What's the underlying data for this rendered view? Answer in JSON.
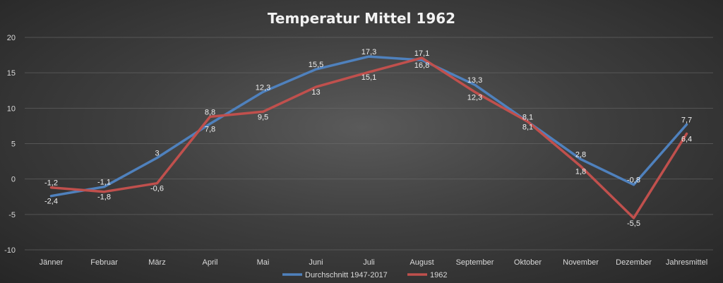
{
  "chart_data": {
    "type": "line",
    "title": "Temperatur Mittel 1962",
    "categories": [
      "Jänner",
      "Februar",
      "März",
      "April",
      "Mai",
      "Juni",
      "Juli",
      "August",
      "September",
      "Oktober",
      "November",
      "Dezember",
      "Jahresmittel"
    ],
    "ylim": [
      -10,
      20
    ],
    "yticks": [
      -10,
      -5,
      0,
      5,
      10,
      15,
      20
    ],
    "grid": true,
    "legend": "bottom",
    "series": [
      {
        "name": "Durchschnitt 1947-2017",
        "color": "#4f81bd",
        "values": [
          -2.4,
          -1.1,
          3,
          7.8,
          12.3,
          15.5,
          17.3,
          16.8,
          13.3,
          8.1,
          2.8,
          -0.8,
          7.7
        ],
        "labels": [
          "-2,4",
          "-1,1",
          "3",
          "7,8",
          "12,3",
          "15,5",
          "17,3",
          "16,8",
          "13,3",
          "8,1",
          "2,8",
          "-0,8",
          "7,7"
        ]
      },
      {
        "name": "1962",
        "color": "#c0504d",
        "values": [
          -1.2,
          -1.8,
          -0.6,
          8.8,
          9.5,
          13,
          15.1,
          17.1,
          12.3,
          8.1,
          1.8,
          -5.5,
          6.4
        ],
        "labels": [
          "-1,2",
          "-1,8",
          "-0,6",
          "8,8",
          "9,5",
          "13",
          "15,1",
          "17,1",
          "12,3",
          "8,1",
          "1,8",
          "-5,5",
          "6,4"
        ]
      }
    ]
  }
}
